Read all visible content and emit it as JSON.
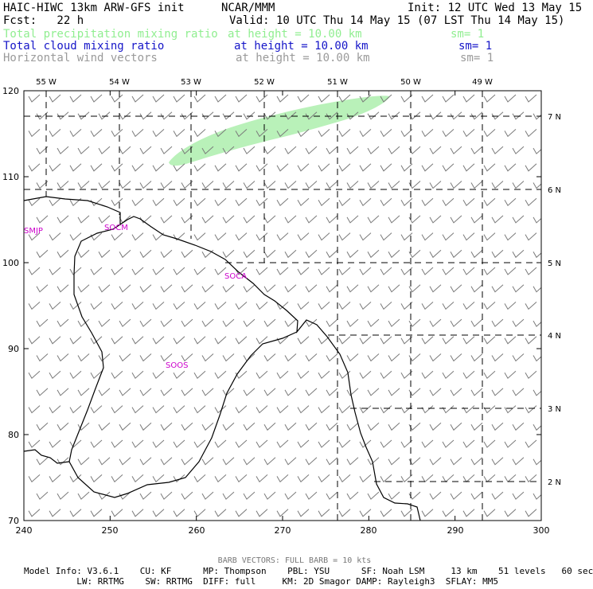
{
  "header": {
    "title": "HAIC-HIWC 13km ARW-GFS init",
    "org": "NCAR/MMM",
    "init": "Init: 12 UTC Wed 13 May 15",
    "fcst": "Fcst:   22 h",
    "valid": "Valid: 10 UTC Thu 14 May 15 (07 LST Thu 14 May 15)"
  },
  "legend": [
    {
      "name": "Total precipitation mixing ratio",
      "height": "at height = 10.00 km",
      "sm": "sm= 1",
      "color": "#90ee90"
    },
    {
      "name": "Total cloud mixing ratio",
      "height": "at height = 10.00 km",
      "sm": "sm= 1",
      "color": "#1515c8"
    },
    {
      "name": "Horizontal wind vectors",
      "height": "at height = 10.00 km",
      "sm": "sm= 1",
      "color": "#9a9a9a"
    }
  ],
  "map": {
    "x_ticks": [
      "240",
      "250",
      "260",
      "270",
      "280",
      "290",
      "300"
    ],
    "y_ticks": [
      "70",
      "80",
      "90",
      "100",
      "110",
      "120"
    ],
    "lon_labels": [
      "55 W",
      "54 W",
      "53 W",
      "52 W",
      "51 W",
      "50 W",
      "49 W"
    ],
    "lat_labels": [
      "7 N",
      "6 N",
      "5 N",
      "4 N",
      "3 N",
      "2 N"
    ],
    "stations": [
      "SMJP",
      "SOCM",
      "SOCA",
      "SOOS"
    ]
  },
  "footer": {
    "barb_note": "BARB VECTORS:  FULL BARB = 10 kts",
    "line1": "Model Info: V3.6.1    CU: KF      MP: Thompson    PBL: YSU      SF: Noah LSM     13 km    51 levels   60 sec",
    "line2": "          LW: RRTMG    SW: RRTMG  DIFF: full     KM: 2D Smagor DAMP: Rayleigh3  SFLAY: MM5"
  }
}
